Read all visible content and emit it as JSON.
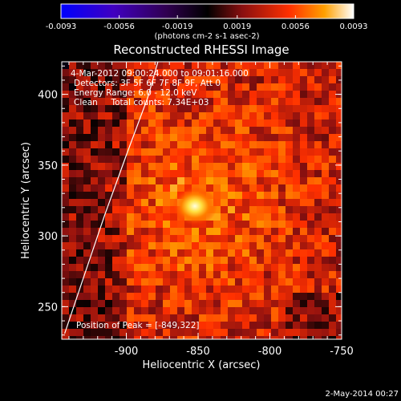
{
  "chart_data": {
    "type": "heatmap",
    "title": "Reconstructed RHESSI Image",
    "xlabel": "Heliocentric X (arcsec)",
    "ylabel": "Heliocentric Y (arcsec)",
    "xlim": [
      -945,
      -750
    ],
    "ylim": [
      227,
      423
    ],
    "xticks": [
      -900,
      -850,
      -800,
      -750
    ],
    "xtick_labels": [
      "-900",
      "-850",
      "-800",
      "-750"
    ],
    "yticks": [
      250,
      300,
      350,
      400
    ],
    "ytick_labels": [
      "250",
      "300",
      "350",
      "400"
    ],
    "peak": {
      "x": -849,
      "y": 322
    },
    "colorbar": {
      "min": -0.0093,
      "max": 0.0093,
      "ticks": [
        -0.0093,
        -0.0056,
        -0.0019,
        0.0019,
        0.0056,
        0.0093
      ],
      "tick_labels": [
        "-0.0093",
        "-0.0056",
        "-0.0019",
        "0.0019",
        "0.0056",
        "0.0093"
      ],
      "units": "(photons cm-2 s-1 asec-2)",
      "colormap": [
        "#0000ff",
        "#5000a8",
        "#000000",
        "#8a1010",
        "#ff3000",
        "#ffa000",
        "#ffffff"
      ]
    },
    "info_lines": [
      "4-Mar-2012 09:00:24.000 to 09:01:16.000",
      "Detectors: 3F 5F 6F 7F 8F 9F, Att 0",
      "Energy Range: 6.0 - 12.0 keV",
      "Clean     Total counts: 7.34E+03"
    ],
    "peak_label": "Position of Peak = [-849,322]",
    "limb_curve": [
      [
        -943,
        231
      ],
      [
        -930,
        270
      ],
      [
        -915,
        315
      ],
      [
        -900,
        357
      ],
      [
        -885,
        398
      ],
      [
        -878,
        423
      ]
    ]
  },
  "footer_date": "2-May-2014 00:27"
}
